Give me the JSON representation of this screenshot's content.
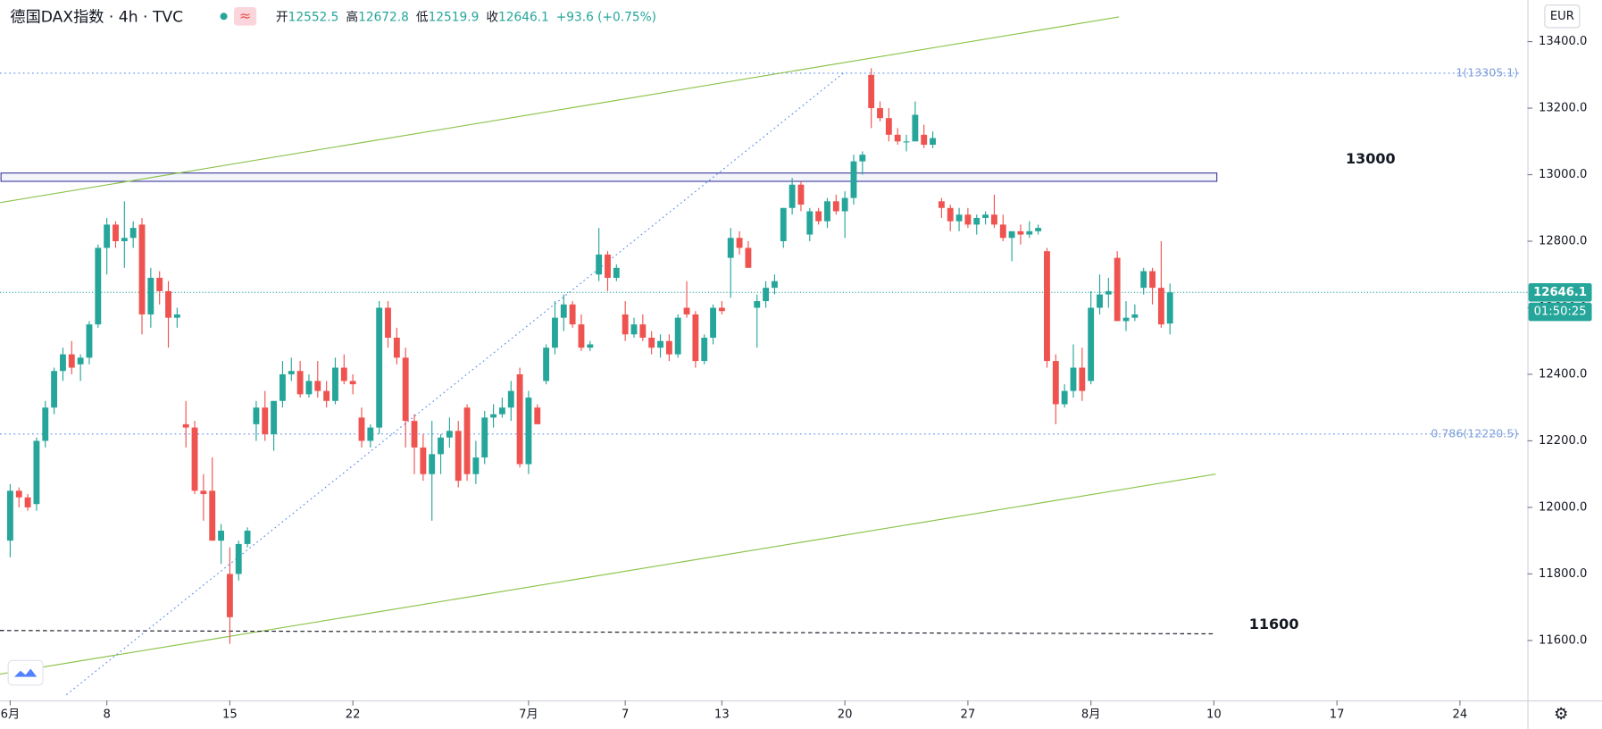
{
  "header": {
    "symbol": "德国DAX指数 · 4h · TVC",
    "quote": [
      {
        "label": "开",
        "value": "12552.5"
      },
      {
        "label": "高",
        "value": "12672.8"
      },
      {
        "label": "低",
        "value": "12519.9"
      },
      {
        "label": "收",
        "value": "12646.1"
      }
    ],
    "change": "+93.6 (+0.75%)",
    "currency": "EUR",
    "countdown": "01:50:25"
  },
  "chart_data": {
    "type": "candlestick",
    "up_color": "#26a69a",
    "down_color": "#ef5350",
    "ylim": [
      11420,
      13525
    ],
    "xlim": [
      -1.16,
      172.68
    ],
    "yticks": [
      {
        "value": 11600,
        "label": "11600.0"
      },
      {
        "value": 11800,
        "label": "11800.0"
      },
      {
        "value": 12000,
        "label": "12000.0"
      },
      {
        "value": 12200,
        "label": "12200.0"
      },
      {
        "value": 12400,
        "label": "12400.0"
      },
      {
        "value": 12600,
        "label": "12600.0"
      },
      {
        "value": 12800,
        "label": "12800.0"
      },
      {
        "value": 13000,
        "label": "13000.0"
      },
      {
        "value": 13200,
        "label": "13200.0"
      },
      {
        "value": 13400,
        "label": "13400.0"
      }
    ],
    "xticks": [
      {
        "value": 0,
        "label": "6月"
      },
      {
        "value": 11,
        "label": "8"
      },
      {
        "value": 25,
        "label": "15"
      },
      {
        "value": 39,
        "label": "22"
      },
      {
        "value": 59,
        "label": "7月"
      },
      {
        "value": 70,
        "label": "7"
      },
      {
        "value": 81,
        "label": "13"
      },
      {
        "value": 95,
        "label": "20"
      },
      {
        "value": 109,
        "label": "27"
      },
      {
        "value": 123,
        "label": "8月"
      },
      {
        "value": 137,
        "label": "10"
      },
      {
        "value": 151,
        "label": "17"
      },
      {
        "value": 165,
        "label": "24"
      }
    ],
    "last_price": {
      "value": 12646.1,
      "label": "12646.1"
    },
    "fib_levels": [
      {
        "value": 13305.1,
        "label": "1(13305.1)"
      },
      {
        "value": 12220.5,
        "label": "0.786(12220.5)"
      }
    ],
    "zone": [
      12980,
      13005
    ],
    "annotations": [
      {
        "text": "13000",
        "x": 152,
        "value": 13000
      },
      {
        "text": "11600",
        "x": 141,
        "value": 11600
      }
    ],
    "lines": [
      {
        "name": "upper-channel",
        "color": "#8bc34a",
        "style": "solid",
        "points": [
          [
            -1.16,
            12916
          ],
          [
            126.2,
            13474
          ]
        ]
      },
      {
        "name": "lower-channel",
        "color": "#8bc34a",
        "style": "solid",
        "points": [
          [
            -1.16,
            11499
          ],
          [
            137.2,
            12100
          ]
        ]
      },
      {
        "name": "fib-trend",
        "color": "#5b8def",
        "style": "dotted",
        "points": [
          [
            6.4,
            11437
          ],
          [
            95.1,
            13311
          ]
        ]
      },
      {
        "name": "support",
        "color": "#131722",
        "style": "dashed",
        "points": [
          [
            -1.16,
            11630
          ],
          [
            137.2,
            11620
          ]
        ]
      }
    ],
    "ohlc": [
      [
        11900,
        12070,
        11850,
        12050
      ],
      [
        12050,
        12060,
        12000,
        12030
      ],
      [
        12030,
        12040,
        11990,
        12000
      ],
      [
        12010,
        12210,
        11990,
        12200
      ],
      [
        12200,
        12320,
        12180,
        12300
      ],
      [
        12300,
        12420,
        12280,
        12410
      ],
      [
        12410,
        12480,
        12380,
        12460
      ],
      [
        12460,
        12500,
        12400,
        12420
      ],
      [
        12430,
        12460,
        12380,
        12450
      ],
      [
        12450,
        12560,
        12430,
        12550
      ],
      [
        12550,
        12790,
        12540,
        12780
      ],
      [
        12780,
        12870,
        12700,
        12850
      ],
      [
        12850,
        12860,
        12780,
        12800
      ],
      [
        12800,
        12920,
        12720,
        12810
      ],
      [
        12810,
        12860,
        12780,
        12840
      ],
      [
        12850,
        12870,
        12520,
        12580
      ],
      [
        12580,
        12720,
        12540,
        12690
      ],
      [
        12690,
        12710,
        12610,
        12650
      ],
      [
        12650,
        12680,
        12480,
        12570
      ],
      [
        12570,
        12600,
        12540,
        12580
      ],
      [
        12250,
        12320,
        12180,
        12240
      ],
      [
        12240,
        12260,
        12040,
        12050
      ],
      [
        12050,
        12100,
        11960,
        12040
      ],
      [
        12050,
        12150,
        11900,
        11900
      ],
      [
        11900,
        11950,
        11830,
        11930
      ],
      [
        11800,
        11880,
        11590,
        11670
      ],
      [
        11800,
        11900,
        11780,
        11890
      ],
      [
        11890,
        11940,
        11880,
        11930
      ],
      [
        12250,
        12320,
        12200,
        12300
      ],
      [
        12300,
        12350,
        12200,
        12220
      ],
      [
        12220,
        12320,
        12170,
        12320
      ],
      [
        12320,
        12440,
        12300,
        12400
      ],
      [
        12400,
        12450,
        12380,
        12410
      ],
      [
        12410,
        12440,
        12330,
        12340
      ],
      [
        12340,
        12400,
        12330,
        12380
      ],
      [
        12380,
        12440,
        12330,
        12350
      ],
      [
        12350,
        12380,
        12300,
        12320
      ],
      [
        12320,
        12450,
        12310,
        12420
      ],
      [
        12420,
        12460,
        12370,
        12380
      ],
      [
        12380,
        12400,
        12340,
        12370
      ],
      [
        12270,
        12300,
        12180,
        12200
      ],
      [
        12200,
        12250,
        12180,
        12240
      ],
      [
        12240,
        12620,
        12220,
        12600
      ],
      [
        12600,
        12620,
        12480,
        12510
      ],
      [
        12510,
        12540,
        12430,
        12450
      ],
      [
        12450,
        12480,
        12180,
        12260
      ],
      [
        12260,
        12280,
        12100,
        12180
      ],
      [
        12180,
        12220,
        12080,
        12100
      ],
      [
        12100,
        12260,
        11960,
        12160
      ],
      [
        12160,
        12220,
        12100,
        12210
      ],
      [
        12210,
        12270,
        12180,
        12230
      ],
      [
        12230,
        12260,
        12060,
        12080
      ],
      [
        12300,
        12310,
        12080,
        12100
      ],
      [
        12100,
        12200,
        12070,
        12150
      ],
      [
        12150,
        12290,
        12130,
        12270
      ],
      [
        12270,
        12310,
        12240,
        12280
      ],
      [
        12280,
        12330,
        12270,
        12300
      ],
      [
        12300,
        12380,
        12260,
        12350
      ],
      [
        12400,
        12420,
        12120,
        12130
      ],
      [
        12130,
        12350,
        12100,
        12330
      ],
      [
        12300,
        12310,
        12250,
        12250
      ],
      [
        12380,
        12490,
        12370,
        12480
      ],
      [
        12480,
        12620,
        12460,
        12570
      ],
      [
        12570,
        12640,
        12530,
        12610
      ],
      [
        12610,
        12620,
        12540,
        12550
      ],
      [
        12550,
        12580,
        12470,
        12480
      ],
      [
        12480,
        12500,
        12470,
        12490
      ],
      [
        12700,
        12840,
        12680,
        12760
      ],
      [
        12760,
        12770,
        12650,
        12690
      ],
      [
        12690,
        12730,
        12680,
        12720
      ],
      [
        12580,
        12620,
        12500,
        12520
      ],
      [
        12520,
        12570,
        12510,
        12550
      ],
      [
        12550,
        12580,
        12500,
        12510
      ],
      [
        12510,
        12530,
        12460,
        12480
      ],
      [
        12480,
        12520,
        12450,
        12500
      ],
      [
        12500,
        12520,
        12440,
        12460
      ],
      [
        12460,
        12580,
        12450,
        12570
      ],
      [
        12600,
        12680,
        12570,
        12580
      ],
      [
        12580,
        12590,
        12420,
        12440
      ],
      [
        12440,
        12520,
        12430,
        12510
      ],
      [
        12510,
        12610,
        12490,
        12600
      ],
      [
        12600,
        12620,
        12580,
        12590
      ],
      [
        12750,
        12840,
        12630,
        12810
      ],
      [
        12810,
        12830,
        12760,
        12780
      ],
      [
        12780,
        12800,
        12720,
        12720
      ],
      [
        12600,
        12640,
        12480,
        12620
      ],
      [
        12620,
        12680,
        12600,
        12660
      ],
      [
        12660,
        12700,
        12640,
        12680
      ],
      [
        12800,
        12900,
        12780,
        12900
      ],
      [
        12900,
        12990,
        12880,
        12970
      ],
      [
        12970,
        12980,
        12890,
        12910
      ],
      [
        12820,
        12900,
        12800,
        12890
      ],
      [
        12890,
        12900,
        12850,
        12860
      ],
      [
        12860,
        12930,
        12840,
        12920
      ],
      [
        12920,
        12940,
        12880,
        12890
      ],
      [
        12890,
        12950,
        12810,
        12930
      ],
      [
        12930,
        13060,
        12910,
        13040
      ],
      [
        13040,
        13070,
        13000,
        13060
      ],
      [
        13300,
        13320,
        13140,
        13200
      ],
      [
        13200,
        13220,
        13160,
        13170
      ],
      [
        13170,
        13200,
        13100,
        13120
      ],
      [
        13120,
        13140,
        13090,
        13100
      ],
      [
        13100,
        13120,
        13070,
        13100
      ],
      [
        13100,
        13220,
        13100,
        13180
      ],
      [
        13120,
        13150,
        13080,
        13090
      ],
      [
        13090,
        13130,
        13080,
        13110
      ],
      [
        12920,
        12930,
        12870,
        12900
      ],
      [
        12900,
        12910,
        12830,
        12860
      ],
      [
        12860,
        12900,
        12830,
        12880
      ],
      [
        12880,
        12900,
        12840,
        12850
      ],
      [
        12850,
        12880,
        12820,
        12870
      ],
      [
        12870,
        12890,
        12850,
        12880
      ],
      [
        12880,
        12940,
        12840,
        12850
      ],
      [
        12850,
        12880,
        12800,
        12810
      ],
      [
        12810,
        12830,
        12740,
        12830
      ],
      [
        12830,
        12850,
        12790,
        12820
      ],
      [
        12820,
        12860,
        12810,
        12830
      ],
      [
        12830,
        12850,
        12820,
        12840
      ],
      [
        12770,
        12780,
        12420,
        12440
      ],
      [
        12440,
        12460,
        12250,
        12310
      ],
      [
        12310,
        12370,
        12300,
        12350
      ],
      [
        12350,
        12490,
        12330,
        12420
      ],
      [
        12420,
        12480,
        12320,
        12350
      ],
      [
        12380,
        12650,
        12370,
        12600
      ],
      [
        12600,
        12700,
        12580,
        12640
      ],
      [
        12640,
        12690,
        12600,
        12650
      ],
      [
        12750,
        12770,
        12560,
        12560
      ],
      [
        12560,
        12620,
        12530,
        12570
      ],
      [
        12570,
        12610,
        12560,
        12580
      ],
      [
        12660,
        12720,
        12640,
        12710
      ],
      [
        12710,
        12720,
        12610,
        12660
      ],
      [
        12660,
        12800,
        12540,
        12550
      ],
      [
        12552.5,
        12672.8,
        12519.9,
        12646.1
      ]
    ]
  }
}
